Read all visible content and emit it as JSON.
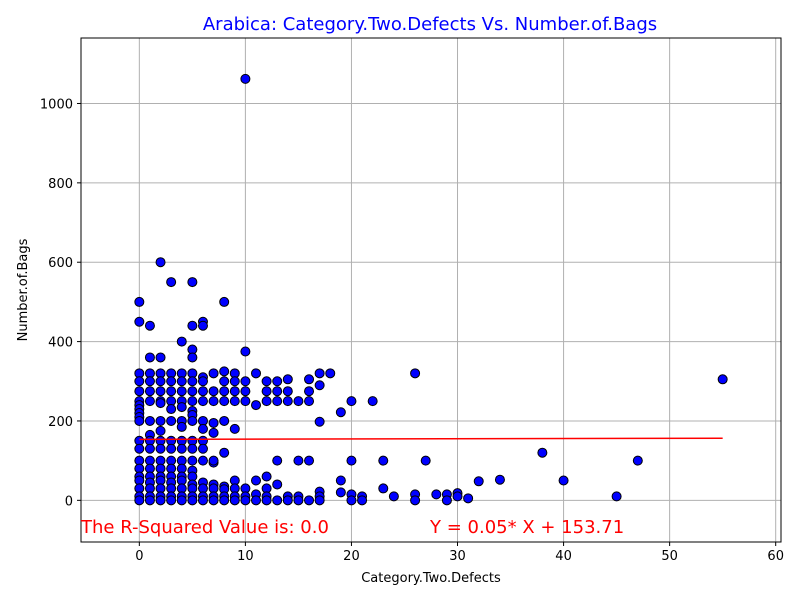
{
  "chart_data": {
    "type": "scatter",
    "title": "Arabica: Category.Two.Defects Vs. Number.of.Bags",
    "xlabel": "Category.Two.Defects",
    "ylabel": "Number.of.Bags",
    "xlim": [
      -5.5,
      60.5
    ],
    "ylim": [
      -105,
      1165
    ],
    "xticks": [
      0,
      10,
      20,
      30,
      40,
      50,
      60
    ],
    "yticks": [
      0,
      200,
      400,
      600,
      800,
      1000
    ],
    "grid": true,
    "colors": {
      "title": "#0000ff",
      "points": "#0000ff",
      "point_edge": "#000000",
      "regression": "#ff0000",
      "annotation": "#ff0000"
    },
    "regression": {
      "slope": 0.05,
      "intercept": 153.71,
      "x_range": [
        0,
        55
      ]
    },
    "annotations": {
      "r_squared": "The R-Squared Value is: 0.0",
      "equation": "Y = 0.05* X + 153.71"
    },
    "points": [
      [
        0,
        500
      ],
      [
        0,
        450
      ],
      [
        1,
        440
      ],
      [
        2,
        600
      ],
      [
        3,
        550
      ],
      [
        5,
        550
      ],
      [
        5,
        440
      ],
      [
        4,
        400
      ],
      [
        5,
        380
      ],
      [
        5,
        360
      ],
      [
        6,
        450
      ],
      [
        6,
        440
      ],
      [
        8,
        500
      ],
      [
        10,
        1062
      ],
      [
        10,
        375
      ],
      [
        1,
        360
      ],
      [
        2,
        360
      ],
      [
        0,
        320
      ],
      [
        1,
        320
      ],
      [
        2,
        320
      ],
      [
        3,
        320
      ],
      [
        4,
        320
      ],
      [
        5,
        320
      ],
      [
        6,
        310
      ],
      [
        7,
        320
      ],
      [
        8,
        325
      ],
      [
        9,
        320
      ],
      [
        11,
        320
      ],
      [
        17,
        320
      ],
      [
        18,
        320
      ],
      [
        26,
        320
      ],
      [
        55,
        305
      ],
      [
        0,
        300
      ],
      [
        1,
        300
      ],
      [
        2,
        300
      ],
      [
        3,
        300
      ],
      [
        4,
        300
      ],
      [
        5,
        300
      ],
      [
        6,
        300
      ],
      [
        8,
        300
      ],
      [
        9,
        300
      ],
      [
        10,
        300
      ],
      [
        12,
        300
      ],
      [
        13,
        300
      ],
      [
        14,
        305
      ],
      [
        16,
        305
      ],
      [
        17,
        290
      ],
      [
        0,
        275
      ],
      [
        1,
        275
      ],
      [
        2,
        275
      ],
      [
        3,
        275
      ],
      [
        4,
        275
      ],
      [
        5,
        275
      ],
      [
        6,
        275
      ],
      [
        7,
        275
      ],
      [
        8,
        275
      ],
      [
        9,
        275
      ],
      [
        10,
        275
      ],
      [
        12,
        275
      ],
      [
        13,
        275
      ],
      [
        14,
        275
      ],
      [
        16,
        275
      ],
      [
        0,
        250
      ],
      [
        1,
        250
      ],
      [
        2,
        250
      ],
      [
        3,
        250
      ],
      [
        4,
        250
      ],
      [
        5,
        250
      ],
      [
        6,
        250
      ],
      [
        7,
        250
      ],
      [
        8,
        250
      ],
      [
        9,
        250
      ],
      [
        10,
        250
      ],
      [
        11,
        240
      ],
      [
        12,
        250
      ],
      [
        13,
        250
      ],
      [
        14,
        250
      ],
      [
        15,
        250
      ],
      [
        16,
        250
      ],
      [
        20,
        250
      ],
      [
        22,
        250
      ],
      [
        0,
        240
      ],
      [
        0,
        230
      ],
      [
        0,
        220
      ],
      [
        0,
        210
      ],
      [
        2,
        245
      ],
      [
        3,
        230
      ],
      [
        4,
        235
      ],
      [
        5,
        225
      ],
      [
        5,
        215
      ],
      [
        19,
        222
      ],
      [
        17,
        198
      ],
      [
        0,
        200
      ],
      [
        1,
        200
      ],
      [
        2,
        200
      ],
      [
        3,
        200
      ],
      [
        4,
        200
      ],
      [
        5,
        200
      ],
      [
        6,
        200
      ],
      [
        7,
        195
      ],
      [
        8,
        200
      ],
      [
        9,
        180
      ],
      [
        4,
        185
      ],
      [
        6,
        180
      ],
      [
        2,
        175
      ],
      [
        7,
        170
      ],
      [
        1,
        165
      ],
      [
        0,
        150
      ],
      [
        1,
        150
      ],
      [
        2,
        150
      ],
      [
        3,
        150
      ],
      [
        4,
        150
      ],
      [
        5,
        150
      ],
      [
        6,
        150
      ],
      [
        0,
        130
      ],
      [
        1,
        130
      ],
      [
        2,
        130
      ],
      [
        3,
        130
      ],
      [
        4,
        130
      ],
      [
        5,
        130
      ],
      [
        6,
        130
      ],
      [
        8,
        120
      ],
      [
        38,
        120
      ],
      [
        0,
        100
      ],
      [
        1,
        100
      ],
      [
        2,
        100
      ],
      [
        3,
        100
      ],
      [
        4,
        100
      ],
      [
        5,
        100
      ],
      [
        6,
        100
      ],
      [
        7,
        95
      ],
      [
        7,
        100
      ],
      [
        13,
        100
      ],
      [
        15,
        100
      ],
      [
        16,
        100
      ],
      [
        20,
        100
      ],
      [
        23,
        100
      ],
      [
        27,
        100
      ],
      [
        47,
        100
      ],
      [
        0,
        80
      ],
      [
        1,
        80
      ],
      [
        2,
        80
      ],
      [
        3,
        80
      ],
      [
        4,
        80
      ],
      [
        5,
        75
      ],
      [
        0,
        60
      ],
      [
        1,
        60
      ],
      [
        2,
        60
      ],
      [
        3,
        60
      ],
      [
        4,
        60
      ],
      [
        5,
        60
      ],
      [
        12,
        60
      ],
      [
        0,
        50
      ],
      [
        1,
        45
      ],
      [
        2,
        50
      ],
      [
        3,
        45
      ],
      [
        4,
        50
      ],
      [
        5,
        40
      ],
      [
        6,
        45
      ],
      [
        7,
        40
      ],
      [
        8,
        35
      ],
      [
        9,
        50
      ],
      [
        11,
        50
      ],
      [
        13,
        40
      ],
      [
        19,
        50
      ],
      [
        32,
        48
      ],
      [
        34,
        52
      ],
      [
        40,
        50
      ],
      [
        0,
        30
      ],
      [
        1,
        30
      ],
      [
        2,
        30
      ],
      [
        3,
        30
      ],
      [
        4,
        30
      ],
      [
        5,
        30
      ],
      [
        6,
        30
      ],
      [
        7,
        30
      ],
      [
        8,
        28
      ],
      [
        9,
        30
      ],
      [
        10,
        30
      ],
      [
        12,
        30
      ],
      [
        17,
        22
      ],
      [
        19,
        20
      ],
      [
        23,
        30
      ],
      [
        28,
        15
      ],
      [
        29,
        15
      ],
      [
        30,
        18
      ],
      [
        0,
        10
      ],
      [
        1,
        10
      ],
      [
        2,
        10
      ],
      [
        3,
        10
      ],
      [
        4,
        10
      ],
      [
        5,
        10
      ],
      [
        6,
        10
      ],
      [
        7,
        10
      ],
      [
        8,
        10
      ],
      [
        9,
        10
      ],
      [
        10,
        10
      ],
      [
        11,
        15
      ],
      [
        12,
        10
      ],
      [
        14,
        10
      ],
      [
        15,
        10
      ],
      [
        17,
        10
      ],
      [
        20,
        15
      ],
      [
        21,
        10
      ],
      [
        24,
        10
      ],
      [
        26,
        15
      ],
      [
        30,
        10
      ],
      [
        45,
        10
      ],
      [
        0,
        0
      ],
      [
        1,
        0
      ],
      [
        2,
        0
      ],
      [
        3,
        0
      ],
      [
        4,
        0
      ],
      [
        5,
        0
      ],
      [
        6,
        0
      ],
      [
        7,
        0
      ],
      [
        8,
        0
      ],
      [
        9,
        0
      ],
      [
        10,
        0
      ],
      [
        11,
        0
      ],
      [
        12,
        0
      ],
      [
        13,
        0
      ],
      [
        14,
        0
      ],
      [
        15,
        0
      ],
      [
        16,
        0
      ],
      [
        17,
        0
      ],
      [
        20,
        0
      ],
      [
        21,
        0
      ],
      [
        26,
        0
      ],
      [
        29,
        0
      ],
      [
        31,
        5
      ]
    ]
  }
}
